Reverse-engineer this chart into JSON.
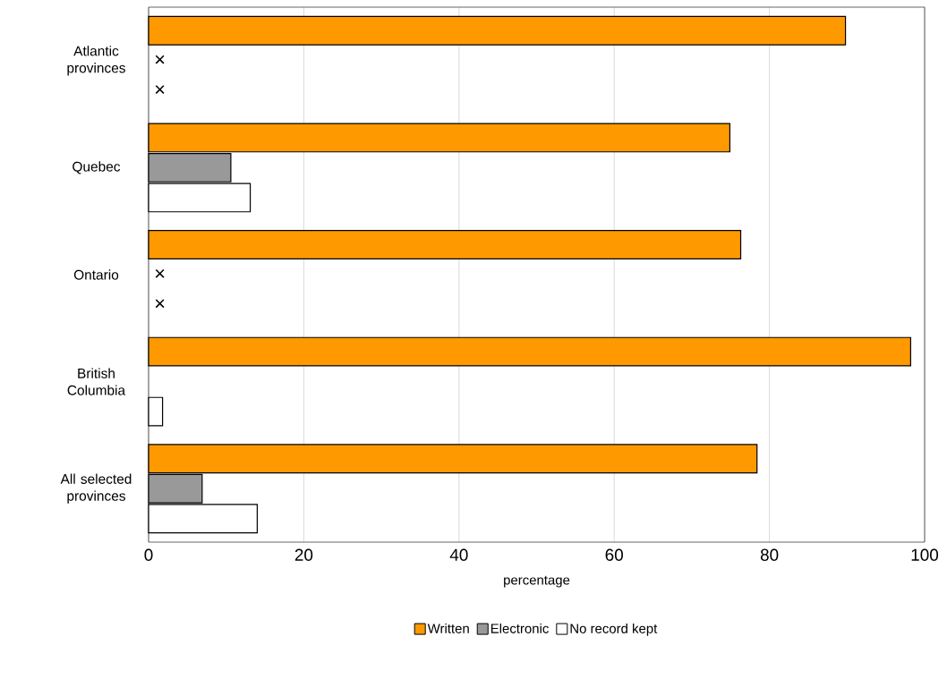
{
  "chart_data": {
    "type": "bar",
    "orientation": "horizontal",
    "xlabel": "percentage",
    "categories": [
      "Atlantic provinces",
      "Quebec",
      "Ontario",
      "British Columbia",
      "All selected provinces"
    ],
    "series": [
      {
        "name": "Written",
        "color": "#ff9900",
        "values": [
          89.8,
          74.9,
          76.3,
          98.2,
          78.4
        ]
      },
      {
        "name": "Electronic",
        "color": "#999999",
        "values": [
          null,
          10.6,
          null,
          null,
          6.9
        ],
        "value_labels": [
          "×",
          null,
          "×",
          null,
          null
        ]
      },
      {
        "name": "No record kept",
        "color": "#ffffff",
        "values": [
          null,
          13.1,
          null,
          1.8,
          14.0
        ],
        "value_labels": [
          "×",
          null,
          "×",
          null,
          null
        ]
      }
    ],
    "xlim": [
      0,
      100
    ],
    "xticks": [
      0,
      20,
      40,
      60,
      80,
      100
    ],
    "grid": "x",
    "legend": "bottom"
  }
}
